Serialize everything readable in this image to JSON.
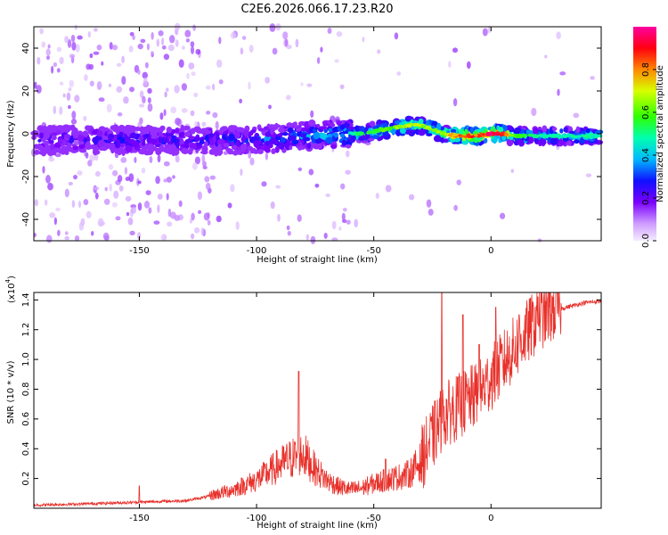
{
  "figure_title": "C2E6.2026.066.17.23.R20",
  "chart_data": [
    {
      "type": "heatmap",
      "title": "C2E6.2026.066.17.23.R20",
      "xlabel": "Height of straight line (km)",
      "ylabel": "Frequency (Hz)",
      "xlim": [
        -195,
        47
      ],
      "ylim": [
        -50,
        50
      ],
      "xticks": [
        -150,
        -100,
        -50,
        0
      ],
      "yticks": [
        -40,
        -20,
        0,
        20,
        40
      ],
      "colorbar": {
        "label": "Normalized spectral amplitude",
        "range": [
          0.0,
          1.0
        ],
        "ticks": [
          0.0,
          0.2,
          0.4,
          0.6,
          0.8
        ],
        "tick_labels": [
          "0.0",
          "0.2",
          "0.4",
          "0.6",
          "0.8"
        ]
      },
      "ridge_profile": {
        "x": [
          -195,
          -150,
          -120,
          -100,
          -80,
          -65,
          -55,
          -45,
          -35,
          -30,
          -25,
          -20,
          -15,
          -10,
          -5,
          0,
          5,
          10,
          20,
          30,
          47
        ],
        "center_hz": [
          -3,
          -3,
          -3,
          -3,
          -1,
          0,
          0,
          2,
          4,
          4,
          2,
          0,
          -1,
          -1,
          -1,
          0,
          0,
          -1,
          -1,
          -1,
          -1
        ],
        "peak_amplitude": [
          0.25,
          0.3,
          0.3,
          0.35,
          0.4,
          0.45,
          0.55,
          0.6,
          0.7,
          0.7,
          0.65,
          0.7,
          0.8,
          0.9,
          0.85,
          0.95,
          0.95,
          0.6,
          0.5,
          0.5,
          0.5
        ]
      }
    },
    {
      "type": "line",
      "xlabel": "Height of straight line (km)",
      "ylabel": "SNR (10 * v/v)",
      "y_multiplier_label": "(x10",
      "y_multiplier_exp": "4",
      "xlim": [
        -195,
        47
      ],
      "ylim": [
        0,
        1.45
      ],
      "xticks": [
        -150,
        -100,
        -50,
        0
      ],
      "yticks": [
        0.2,
        0.4,
        0.6,
        0.8,
        1.0,
        1.2,
        1.4
      ],
      "ytick_labels": [
        "0.2",
        "0.4",
        "0.6",
        "0.8",
        "1.0",
        "1.2",
        "1.4"
      ],
      "series": [
        {
          "name": "SNR",
          "color": "#e8302a",
          "x": [
            -195,
            -170,
            -150,
            -130,
            -120,
            -110,
            -100,
            -90,
            -85,
            -80,
            -75,
            -70,
            -65,
            -60,
            -55,
            -50,
            -45,
            -40,
            -35,
            -30,
            -25,
            -22,
            -20,
            -15,
            -10,
            -5,
            0,
            5,
            10,
            15,
            20,
            25,
            30,
            35,
            40,
            47
          ],
          "values": [
            0.02,
            0.03,
            0.04,
            0.05,
            0.08,
            0.12,
            0.18,
            0.28,
            0.32,
            0.35,
            0.25,
            0.18,
            0.14,
            0.12,
            0.13,
            0.16,
            0.18,
            0.2,
            0.22,
            0.3,
            0.45,
            0.55,
            0.6,
            0.65,
            0.7,
            0.75,
            0.85,
            0.95,
            1.05,
            1.15,
            1.25,
            1.3,
            1.34,
            1.36,
            1.38,
            1.39
          ],
          "spikes": [
            [
              -150,
              0.15
            ],
            [
              -82,
              0.92
            ],
            [
              -45,
              0.33
            ],
            [
              -21,
              1.45
            ],
            [
              -12,
              1.3
            ],
            [
              -5,
              1.1
            ],
            [
              2,
              1.35
            ],
            [
              12,
              1.3
            ],
            [
              20,
              1.42
            ]
          ]
        }
      ]
    }
  ]
}
